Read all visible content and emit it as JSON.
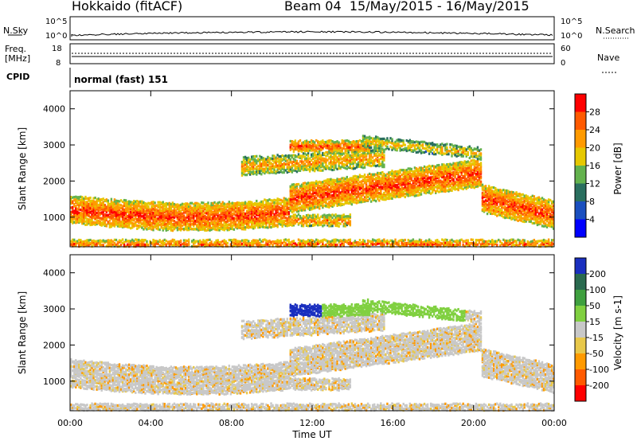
{
  "header": {
    "station": "Hokkaido (fitACF)",
    "beam_info": "Beam 04  15/May/2015 - 16/May/2015"
  },
  "noise_panel": {
    "left_label": "N.Sky",
    "right_label": "N.Search",
    "left_ticks": [
      "10^5",
      "10^0"
    ],
    "right_ticks": [
      "10^5",
      "10^0"
    ]
  },
  "freq_panel": {
    "left_label_line1": "Freq.",
    "left_label_line2": "[MHz]",
    "right_label": "Nave",
    "left_ticks": [
      "18",
      "8"
    ],
    "right_ticks": [
      "60",
      "0"
    ]
  },
  "cpid": {
    "label": "CPID",
    "value": "normal (fast) 151"
  },
  "chart_data": [
    {
      "type": "heatmap",
      "name": "power",
      "ylabel": "Slant Range [km]",
      "y_ticks": [
        "4000",
        "3000",
        "2000",
        "1000"
      ],
      "ylim": [
        180,
        4500
      ],
      "xlim": [
        "00:00",
        "24:00"
      ],
      "colorbar_label": "Power [dB]",
      "colorbar_ticks": [
        "28",
        "24",
        "20",
        "16",
        "12",
        "8",
        "4"
      ],
      "colorbar_colors": [
        "#ff0000",
        "#ff5a00",
        "#ff9a00",
        "#e6c800",
        "#63b24d",
        "#2a6f5f",
        "#1a4fbf",
        "#0000ff"
      ]
    },
    {
      "type": "heatmap",
      "name": "velocity",
      "ylabel": "Slant Range [km]",
      "y_ticks": [
        "4000",
        "3000",
        "2000",
        "1000"
      ],
      "ylim": [
        180,
        4500
      ],
      "xlim": [
        "00:00",
        "24:00"
      ],
      "colorbar_label": "Velocity [m s-1]",
      "colorbar_ticks": [
        "200",
        "100",
        "50",
        "15",
        "-15",
        "-50",
        "-100",
        "-200"
      ],
      "colorbar_colors": [
        "#1a2fbf",
        "#2a6a4f",
        "#3fa03f",
        "#80d040",
        "#c8c8c8",
        "#e8c84a",
        "#ff9a00",
        "#ff5a00",
        "#ff0000"
      ]
    }
  ],
  "x_axis": {
    "ticks": [
      "00:00",
      "04:00",
      "08:00",
      "12:00",
      "16:00",
      "20:00",
      "00:00"
    ],
    "label": "Time UT"
  }
}
